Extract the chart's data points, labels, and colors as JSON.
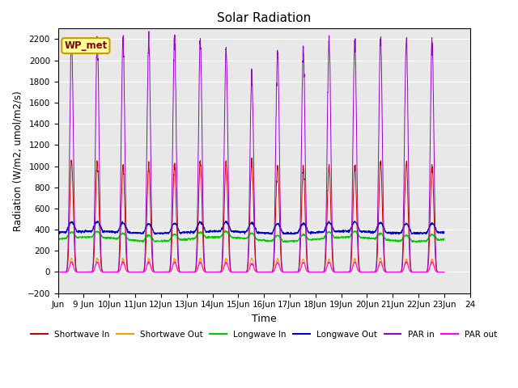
{
  "title": "Solar Radiation",
  "xlabel": "Time",
  "ylabel": "Radiation (W/m2, umol/m2/s)",
  "xlim": [
    0,
    16
  ],
  "ylim": [
    -200,
    2300
  ],
  "yticks": [
    -200,
    0,
    200,
    400,
    600,
    800,
    1000,
    1200,
    1400,
    1600,
    1800,
    2000,
    2200
  ],
  "xtick_labels": [
    "Jun",
    "9 Jun",
    "10Jun",
    "11Jun",
    "12Jun",
    "13Jun",
    "14Jun",
    "15Jun",
    "16Jun",
    "17Jun",
    "18Jun",
    "19Jun",
    "20Jun",
    "21Jun",
    "22Jun",
    "23Jun",
    "24"
  ],
  "background_color": "#e8e8e8",
  "grid_color": "#ffffff",
  "watermark_text": "WP_met",
  "watermark_bg": "#ffff99",
  "watermark_border": "#cc9900",
  "series": {
    "shortwave_in": {
      "color": "#cc0000",
      "label": "Shortwave In"
    },
    "shortwave_out": {
      "color": "#ff9900",
      "label": "Shortwave Out"
    },
    "longwave_in": {
      "color": "#00cc00",
      "label": "Longwave In"
    },
    "longwave_out": {
      "color": "#0000cc",
      "label": "Longwave Out"
    },
    "par_in": {
      "color": "#9900cc",
      "label": "PAR in"
    },
    "par_out": {
      "color": "#ff00ff",
      "label": "PAR out"
    }
  },
  "num_days": 15,
  "points_per_day": 144,
  "shortwave_in_peaks": [
    1050,
    1040,
    1000,
    1010,
    1010,
    1050,
    1040,
    1040,
    1010,
    990,
    1000,
    1010,
    1040,
    1040,
    1010
  ],
  "par_in_peaks": [
    2200,
    2200,
    2200,
    2200,
    2200,
    2200,
    2100,
    1850,
    2100,
    2100,
    2200,
    2200,
    2200,
    2200,
    2200
  ],
  "shortwave_out_peak": 130,
  "par_out_peak": 95,
  "longwave_in_base": 310,
  "longwave_in_amplitude": 55,
  "longwave_out_base": 375,
  "longwave_out_amplitude": 90,
  "daylight_start": 0.26,
  "daylight_end": 0.79,
  "peak_sharpness": 6.0
}
